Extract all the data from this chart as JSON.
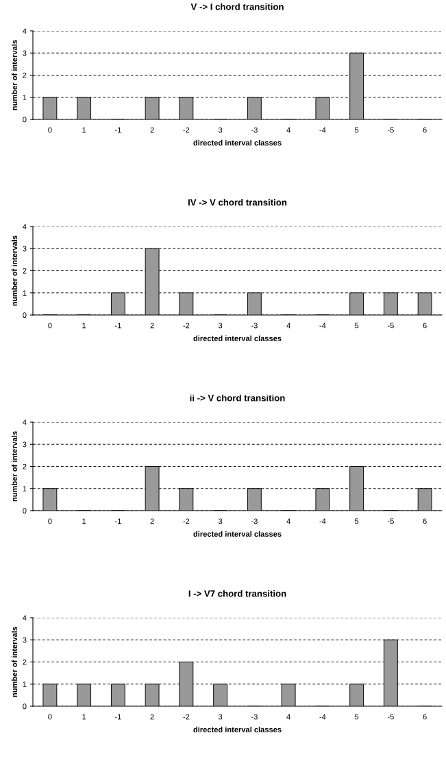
{
  "chart_data": [
    {
      "type": "bar",
      "title": "V -> I chord transition",
      "xlabel": "directed interval classes",
      "ylabel": "number of intervals",
      "categories": [
        "0",
        "1",
        "-1",
        "2",
        "-2",
        "3",
        "-3",
        "4",
        "-4",
        "5",
        "-5",
        "6"
      ],
      "values": [
        1,
        1,
        0,
        1,
        1,
        0,
        1,
        0,
        1,
        3,
        0,
        0
      ],
      "color": "#999999",
      "ylim": [
        0,
        4
      ],
      "yticks": [
        0,
        1,
        2,
        3,
        4
      ],
      "grid": "y"
    },
    {
      "type": "bar",
      "title": "IV -> V chord transition",
      "xlabel": "directed interval classes",
      "ylabel": "number of intervals",
      "categories": [
        "0",
        "1",
        "-1",
        "2",
        "-2",
        "3",
        "-3",
        "4",
        "-4",
        "5",
        "-5",
        "6"
      ],
      "values": [
        0,
        0,
        1,
        3,
        1,
        0,
        1,
        0,
        0,
        1,
        1,
        1
      ],
      "color": "#999999",
      "ylim": [
        0,
        4
      ],
      "yticks": [
        0,
        1,
        2,
        3,
        4
      ],
      "grid": "y"
    },
    {
      "type": "bar",
      "title": "ii -> V chord transition",
      "xlabel": "directed interval classes",
      "ylabel": "number of intervals",
      "categories": [
        "0",
        "1",
        "-1",
        "2",
        "-2",
        "3",
        "-3",
        "4",
        "-4",
        "5",
        "-5",
        "6"
      ],
      "values": [
        1,
        0,
        0,
        2,
        1,
        0,
        1,
        0,
        1,
        2,
        0,
        1
      ],
      "color": "#999999",
      "ylim": [
        0,
        4
      ],
      "yticks": [
        0,
        1,
        2,
        3,
        4
      ],
      "grid": "y"
    },
    {
      "type": "bar",
      "title": "I -> V7 chord transition",
      "xlabel": "directed interval classes",
      "ylabel": "number of intervals",
      "categories": [
        "0",
        "1",
        "-1",
        "2",
        "-2",
        "3",
        "-3",
        "4",
        "-4",
        "5",
        "-5",
        "6"
      ],
      "values": [
        1,
        1,
        1,
        1,
        2,
        1,
        0,
        1,
        0,
        1,
        3,
        0
      ],
      "color": "#999999",
      "ylim": [
        0,
        4
      ],
      "yticks": [
        0,
        1,
        2,
        3,
        4
      ],
      "grid": "y"
    }
  ]
}
